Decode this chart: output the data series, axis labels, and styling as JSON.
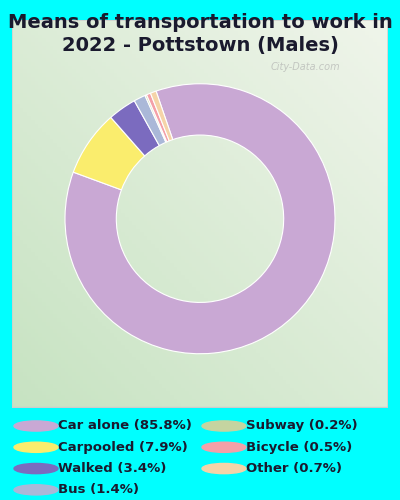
{
  "title": "Means of transportation to work in\n2022 - Pottstown (Males)",
  "slices": [
    {
      "label": "Car alone (85.8%)",
      "value": 85.8,
      "color": "#c9a8d4"
    },
    {
      "label": "Carpooled (7.9%)",
      "value": 7.9,
      "color": "#faed6d"
    },
    {
      "label": "Walked (3.4%)",
      "value": 3.4,
      "color": "#7b6bbf"
    },
    {
      "label": "Bus (1.4%)",
      "value": 1.4,
      "color": "#aab8d8"
    },
    {
      "label": "Subway (0.2%)",
      "value": 0.2,
      "color": "#c5d4a0"
    },
    {
      "label": "Bicycle (0.5%)",
      "value": 0.5,
      "color": "#f4a0a8"
    },
    {
      "label": "Other (0.7%)",
      "value": 0.7,
      "color": "#f5d4a8"
    }
  ],
  "bg_color": "#00ffff",
  "chart_bg_grad_start": "#c8e6c0",
  "chart_bg_grad_end": "#f0f5e8",
  "title_fontsize": 14,
  "legend_fontsize": 9.5,
  "watermark": "City-Data.com",
  "startangle": 109,
  "donut_width": 0.38
}
